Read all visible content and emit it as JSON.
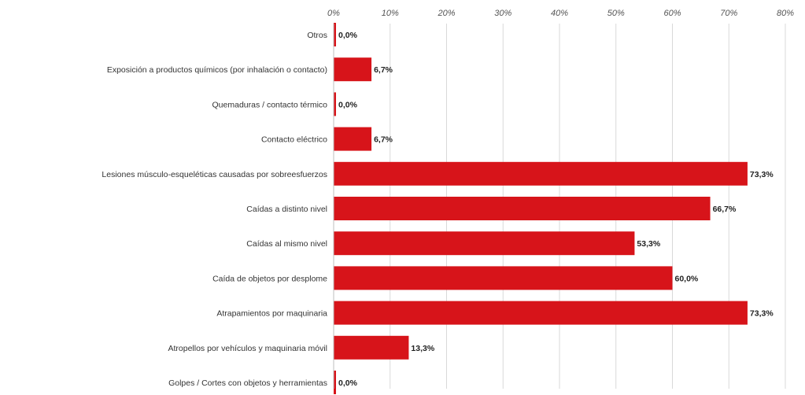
{
  "chart_data": {
    "type": "bar",
    "orientation": "horizontal",
    "categories": [
      "Otros",
      "Exposición a productos químicos (por inhalación o contacto)",
      "Quemaduras / contacto térmico",
      "Contacto eléctrico",
      "Lesiones músculo-esqueléticas causadas por sobreesfuerzos",
      "Caídas a distinto nivel",
      "Caídas al mismo nivel",
      "Caída de objetos por desplome",
      "Atrapamientos por maquinaria",
      "Atropellos por vehículos y maquinaria móvil",
      "Golpes / Cortes con objetos y herramientas"
    ],
    "values": [
      0.0,
      6.7,
      0.0,
      6.7,
      73.3,
      66.7,
      53.3,
      60.0,
      73.3,
      13.3,
      0.0
    ],
    "value_labels": [
      "0,0%",
      "6,7%",
      "0,0%",
      "6,7%",
      "73,3%",
      "66,7%",
      "53,3%",
      "60,0%",
      "73,3%",
      "13,3%",
      "0,0%"
    ],
    "xlim": [
      0,
      80
    ],
    "xticks": [
      0,
      10,
      20,
      30,
      40,
      50,
      60,
      70,
      80
    ],
    "xtick_labels": [
      "0%",
      "10%",
      "20%",
      "30%",
      "40%",
      "50%",
      "60%",
      "70%",
      "80%"
    ],
    "x_axis_position": "top",
    "grid": true,
    "bar_color": "#d7141a",
    "title": "",
    "xlabel": "",
    "ylabel": ""
  }
}
